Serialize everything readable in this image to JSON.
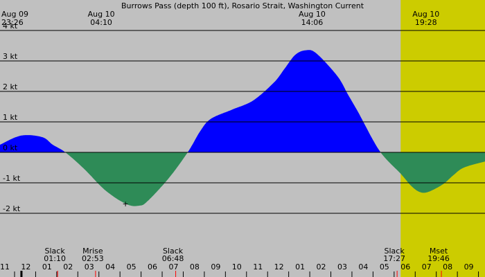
{
  "chart_data": {
    "type": "area",
    "title": "Burrows Pass (depth 100 ft), Rosario Strait, Washington Current",
    "xlabel": "",
    "ylabel": "",
    "x_unit": "hours",
    "xlim": [
      -13.0,
      10.0
    ],
    "ylim": [
      -3.0,
      4.0
    ],
    "y_ticks": [
      4,
      3,
      2,
      1,
      0,
      -1,
      -2
    ],
    "y_tick_labels": [
      "4 kt",
      "3 kt",
      "2 kt",
      "1 kt",
      "0 kt",
      "-1 kt",
      "-2 kt"
    ],
    "grid": true,
    "daylight": [
      6.0,
      20.0
    ],
    "colors": {
      "background": "#c0c0c0",
      "daylight": "#cccc00",
      "flood": "#0000ff",
      "ebb": "#2e8b57",
      "grid": "#000000",
      "tick_mark": "#ff0000"
    },
    "series": [
      {
        "x": [
          -13,
          -12,
          -11,
          -10.5,
          -9.9,
          -9,
          -8,
          -7,
          -6.4,
          -6,
          -5,
          -4.1,
          -3.5,
          -3,
          -2,
          -1,
          0,
          0.5,
          1,
          1.5,
          2,
          3,
          3.5,
          4,
          5,
          6,
          6.5,
          6.9,
          7.3,
          8,
          8.5,
          9,
          10
        ],
        "y": [
          0.25,
          0.55,
          0.5,
          0.25,
          0,
          -0.55,
          -1.25,
          -1.7,
          -1.75,
          -1.6,
          -0.85,
          0,
          0.7,
          1.1,
          1.4,
          1.7,
          2.3,
          2.75,
          3.2,
          3.35,
          3.25,
          2.5,
          1.9,
          1.3,
          0.05,
          -0.7,
          -1.1,
          -1.3,
          -1.3,
          -1.05,
          -0.75,
          -0.5,
          -0.3
        ]
      }
    ],
    "top_labels": [
      {
        "x": -13.0,
        "date": "Aug 09",
        "time": "23:26"
      },
      {
        "x": -8.2,
        "date": "Aug 10",
        "time": "04:10"
      },
      {
        "x": 1.8,
        "date": "Aug 10",
        "time": "14:06"
      },
      {
        "x": 7.2,
        "date": "Aug 10",
        "time": "19:28"
      }
    ],
    "events": [
      {
        "x": -10.4,
        "label": "Slack",
        "time": "01:10"
      },
      {
        "x": -8.6,
        "label": "Mrise",
        "time": "02:53"
      },
      {
        "x": -4.8,
        "label": "Slack",
        "time": "06:48"
      },
      {
        "x": 5.7,
        "label": "Slack",
        "time": "17:27"
      },
      {
        "x": 7.8,
        "label": "Mset",
        "time": "19:46"
      }
    ],
    "hour_labels": [
      "11",
      "12",
      "01",
      "02",
      "03",
      "04",
      "05",
      "06",
      "07",
      "08",
      "09",
      "10",
      "11",
      "12",
      "01",
      "02",
      "03",
      "04",
      "05",
      "06",
      "07",
      "08",
      "09"
    ],
    "hour_start": -13,
    "marker": {
      "x": -7.05,
      "y": -1.68,
      "symbol": "+"
    },
    "midnight_x": -12
  }
}
